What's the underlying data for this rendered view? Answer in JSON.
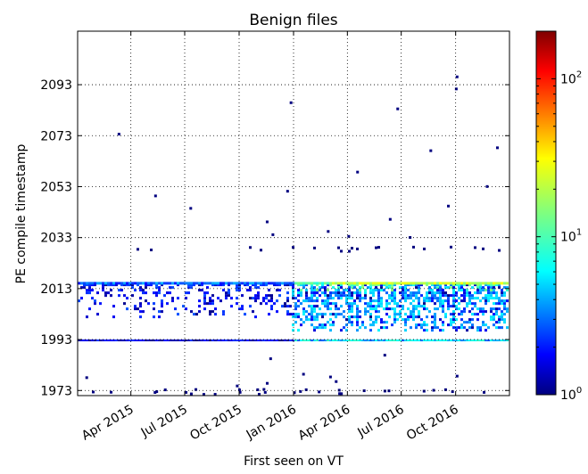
{
  "chart_data": {
    "type": "heatmap",
    "title": "Benign files",
    "xlabel": "First seen on VT",
    "ylabel": "PE compile timestamp",
    "x_tick_labels": [
      "Apr 2015",
      "Jul 2015",
      "Oct 2015",
      "Jan 2016",
      "Apr 2016",
      "Jul 2016",
      "Oct 2016"
    ],
    "y_tick_labels": [
      "2093",
      "2073",
      "2053",
      "2033",
      "2013",
      "1993",
      "1973"
    ],
    "y_ticks": [
      2093,
      2073,
      2053,
      2033,
      2013,
      1993,
      1973
    ],
    "x_range": [
      "2015-01-01",
      "2016-12-31"
    ],
    "y_range": [
      1971,
      2114
    ],
    "grid": true,
    "colorbar": {
      "scale": "log",
      "range": [
        1,
        200
      ],
      "tick_labels": [
        "10",
        "10",
        "10"
      ],
      "tick_exponents": [
        "0",
        "1",
        "2"
      ],
      "ticks": [
        1,
        10,
        100
      ],
      "colormap": "jet"
    },
    "features": [
      {
        "name": "dense band",
        "x": [
          "2015-01-01",
          "2016-12-31"
        ],
        "y": [
          2000,
          2015
        ],
        "level": "low to medium"
      },
      {
        "name": "dense band 2016",
        "x": [
          "2015-12-15",
          "2016-12-31"
        ],
        "y": [
          1997,
          2015
        ],
        "level": "medium"
      },
      {
        "name": "top edge line",
        "x": [
          "2016-03-01",
          "2016-12-31"
        ],
        "y": [
          2015,
          2016
        ],
        "level": "high (~20-30)"
      },
      {
        "name": "1993 line",
        "x": [
          "2015-01-01",
          "2016-12-31"
        ],
        "y": [
          1992,
          1993
        ],
        "level": "low to ~10"
      },
      {
        "name": "2029 points",
        "x": [
          "2015-01-01",
          "2016-12-31"
        ],
        "y": [
          2028,
          2030
        ],
        "level": "low"
      },
      {
        "name": "sparse outliers",
        "x": [
          "2015-01-01",
          "2016-12-31"
        ],
        "y": [
          1970,
          2100
        ],
        "level": "1"
      }
    ]
  }
}
